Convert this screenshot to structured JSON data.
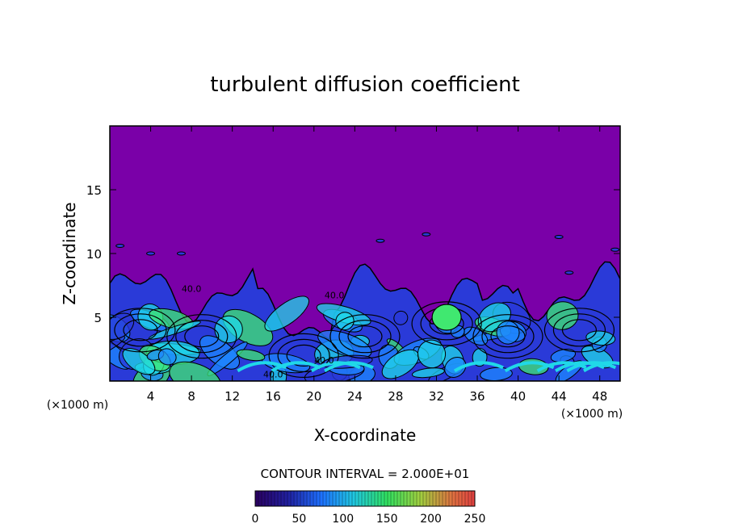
{
  "chart_data": {
    "type": "heatmap",
    "title": "turbulent diffusion coefficient",
    "xlabel": "X-coordinate",
    "ylabel": "Z-coordinate",
    "x_unit": "(×1000 m)",
    "y_unit": "(×1000 m)",
    "xlim": [
      0,
      50
    ],
    "ylim": [
      0,
      20
    ],
    "x_ticks": [
      4,
      8,
      12,
      16,
      20,
      24,
      28,
      32,
      36,
      40,
      44,
      48
    ],
    "y_ticks": [
      5,
      10,
      15
    ],
    "contour_interval_text": "CONTOUR INTERVAL = 2.000E+01",
    "contour_labels": [
      "40.0",
      "40.0",
      "40.0",
      "40.0"
    ],
    "colorbar": {
      "min": 0,
      "max": 250,
      "ticks": [
        0,
        50,
        100,
        150,
        200,
        250
      ]
    },
    "background_value": 0,
    "turbulent_layer_top_km": 7.5,
    "colors": {
      "background": "#7a00a8",
      "low": "#2a3ad8",
      "mid": "#1e88ff",
      "high": "#20d8e8",
      "peak": "#40e870",
      "contour": "#000000"
    }
  }
}
